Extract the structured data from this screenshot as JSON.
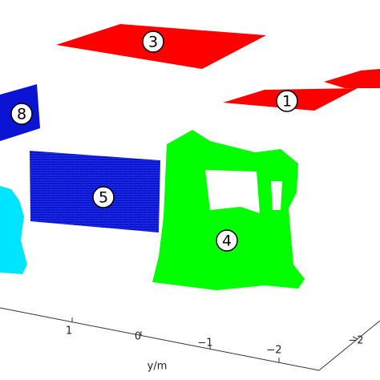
{
  "regions": [
    {
      "label": "3",
      "color": "#ff0000"
    },
    {
      "label": "1",
      "color": "#ff0000"
    },
    {
      "label": "8",
      "color": "#0000ff"
    },
    {
      "label": "5",
      "color": "#0000ff"
    },
    {
      "label": "4",
      "color": "#00ff00"
    }
  ],
  "axis": {
    "label": "y/m",
    "ticks": [
      "1",
      "0",
      "−1",
      "−2"
    ]
  },
  "side_axis": {
    "ticks": [
      "−2"
    ]
  }
}
